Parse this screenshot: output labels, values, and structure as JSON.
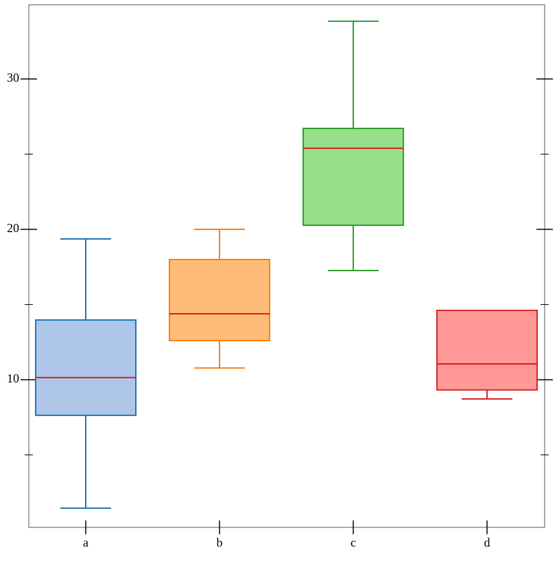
{
  "chart_data": {
    "type": "box",
    "categories": [
      "a",
      "b",
      "c",
      "d"
    ],
    "boxes": [
      {
        "low": 1.46,
        "q1": 7.63,
        "median": 10.14,
        "q3": 13.97,
        "high": 19.36
      },
      {
        "low": 10.78,
        "q1": 12.6,
        "median": 14.38,
        "q3": 17.99,
        "high": 20.0
      },
      {
        "low": 17.26,
        "q1": 20.27,
        "median": 25.39,
        "q3": 26.71,
        "high": 33.84
      },
      {
        "low": 8.72,
        "q1": 9.32,
        "median": 11.05,
        "q3": 14.61,
        "high": 14.61
      }
    ],
    "edge_colors": [
      "#1f77b4",
      "#ff7f0e",
      "#2ca02c",
      "#d62728"
    ],
    "fill_colors": [
      "#aec7e8",
      "#ffbb78",
      "#98df8a",
      "#ff9896"
    ],
    "median_color": "#e31a1c",
    "ylim": [
      0.18,
      34.93
    ],
    "yticks": [
      10,
      20,
      30
    ],
    "minor_yticks": [
      5,
      15,
      25
    ]
  }
}
